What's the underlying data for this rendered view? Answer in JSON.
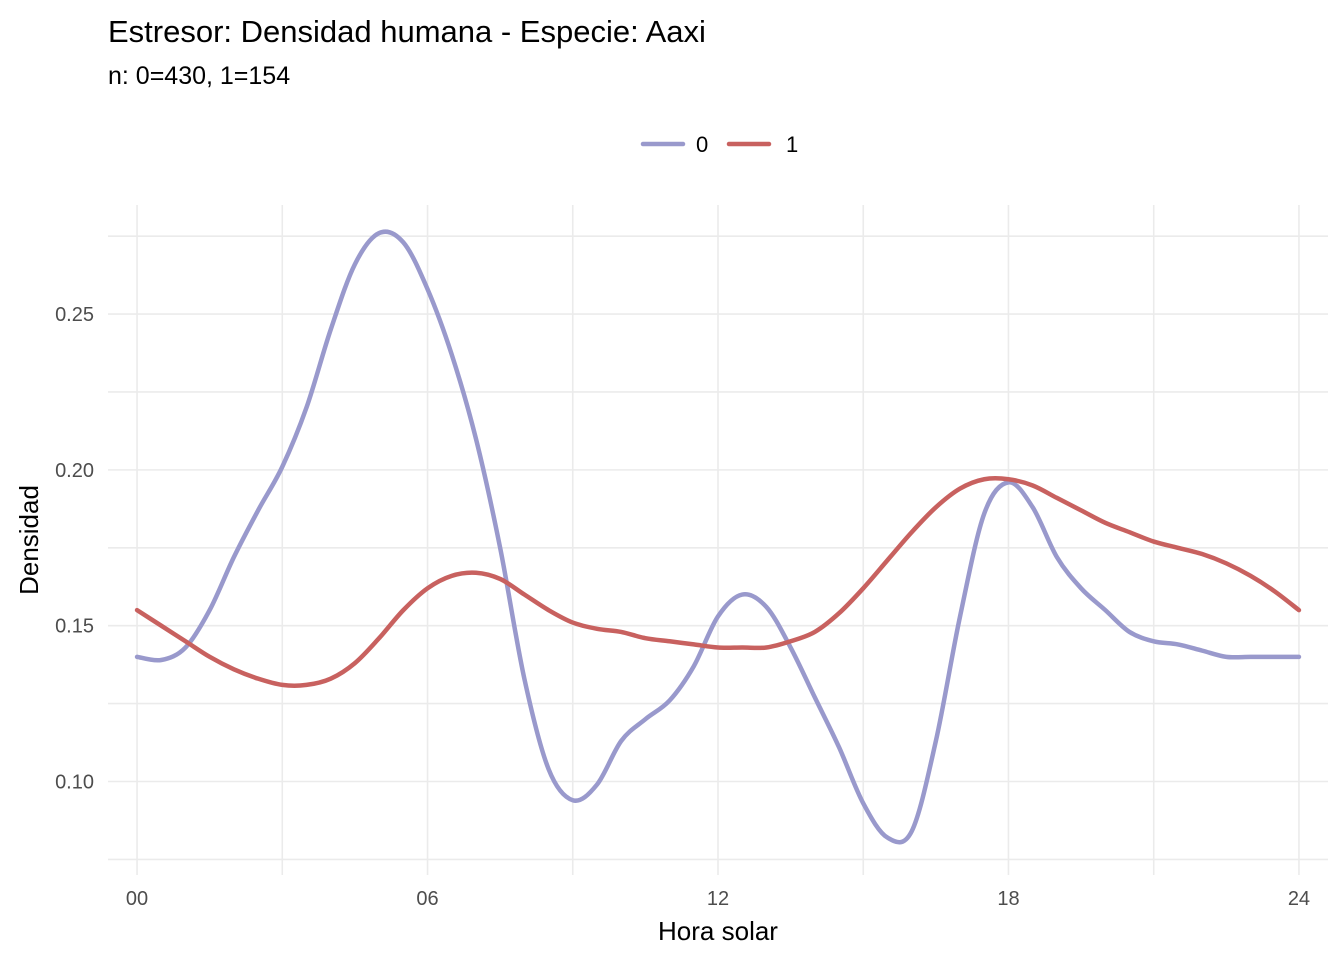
{
  "chart_data": {
    "type": "line",
    "title": "Estresor: Densidad humana - Especie:  Aaxi",
    "subtitle": "n:  0=430, 1=154",
    "xlabel": "Hora solar",
    "ylabel": "Densidad",
    "xlim": [
      -0.6,
      24.6
    ],
    "ylim": [
      0.07,
      0.285
    ],
    "x_ticks": [
      0,
      6,
      12,
      18,
      24
    ],
    "x_tick_labels": [
      "00",
      "06",
      "12",
      "18",
      "24"
    ],
    "y_ticks": [
      0.1,
      0.15,
      0.2,
      0.25
    ],
    "y_tick_labels": [
      "0.10",
      "0.15",
      "0.20",
      "0.25"
    ],
    "grid": true,
    "legend_position": "top",
    "series": [
      {
        "name": "0",
        "color": "#9999cc",
        "x": [
          0,
          0.5,
          1,
          1.5,
          2,
          2.5,
          3,
          3.5,
          4,
          4.5,
          5,
          5.5,
          6,
          6.5,
          7,
          7.5,
          8,
          8.5,
          9,
          9.5,
          10,
          10.5,
          11,
          11.5,
          12,
          12.5,
          13,
          13.5,
          14,
          14.5,
          15,
          15.5,
          16,
          16.5,
          17,
          17.5,
          18,
          18.5,
          19,
          19.5,
          20,
          20.5,
          21,
          21.5,
          22,
          22.5,
          23,
          23.5,
          24
        ],
        "y": [
          0.14,
          0.139,
          0.143,
          0.155,
          0.172,
          0.187,
          0.201,
          0.22,
          0.245,
          0.266,
          0.276,
          0.273,
          0.258,
          0.237,
          0.21,
          0.175,
          0.133,
          0.104,
          0.094,
          0.099,
          0.113,
          0.12,
          0.126,
          0.137,
          0.153,
          0.16,
          0.156,
          0.143,
          0.127,
          0.111,
          0.093,
          0.082,
          0.084,
          0.113,
          0.153,
          0.186,
          0.196,
          0.188,
          0.172,
          0.162,
          0.155,
          0.148,
          0.145,
          0.144,
          0.142,
          0.14,
          0.14,
          0.14,
          0.14
        ]
      },
      {
        "name": "1",
        "color": "#c8615f",
        "x": [
          0,
          0.5,
          1,
          1.5,
          2,
          2.5,
          3,
          3.5,
          4,
          4.5,
          5,
          5.5,
          6,
          6.5,
          7,
          7.5,
          8,
          8.5,
          9,
          9.5,
          10,
          10.5,
          11,
          11.5,
          12,
          12.5,
          13,
          13.5,
          14,
          14.5,
          15,
          15.5,
          16,
          16.5,
          17,
          17.5,
          18,
          18.5,
          19,
          19.5,
          20,
          20.5,
          21,
          21.5,
          22,
          22.5,
          23,
          23.5,
          24
        ],
        "y": [
          0.155,
          0.15,
          0.145,
          0.14,
          0.136,
          0.133,
          0.131,
          0.131,
          0.133,
          0.138,
          0.146,
          0.155,
          0.162,
          0.166,
          0.167,
          0.165,
          0.16,
          0.155,
          0.151,
          0.149,
          0.148,
          0.146,
          0.145,
          0.144,
          0.143,
          0.143,
          0.143,
          0.145,
          0.148,
          0.154,
          0.162,
          0.171,
          0.18,
          0.188,
          0.194,
          0.197,
          0.197,
          0.195,
          0.191,
          0.187,
          0.183,
          0.18,
          0.177,
          0.175,
          0.173,
          0.17,
          0.166,
          0.161,
          0.155
        ]
      }
    ]
  }
}
